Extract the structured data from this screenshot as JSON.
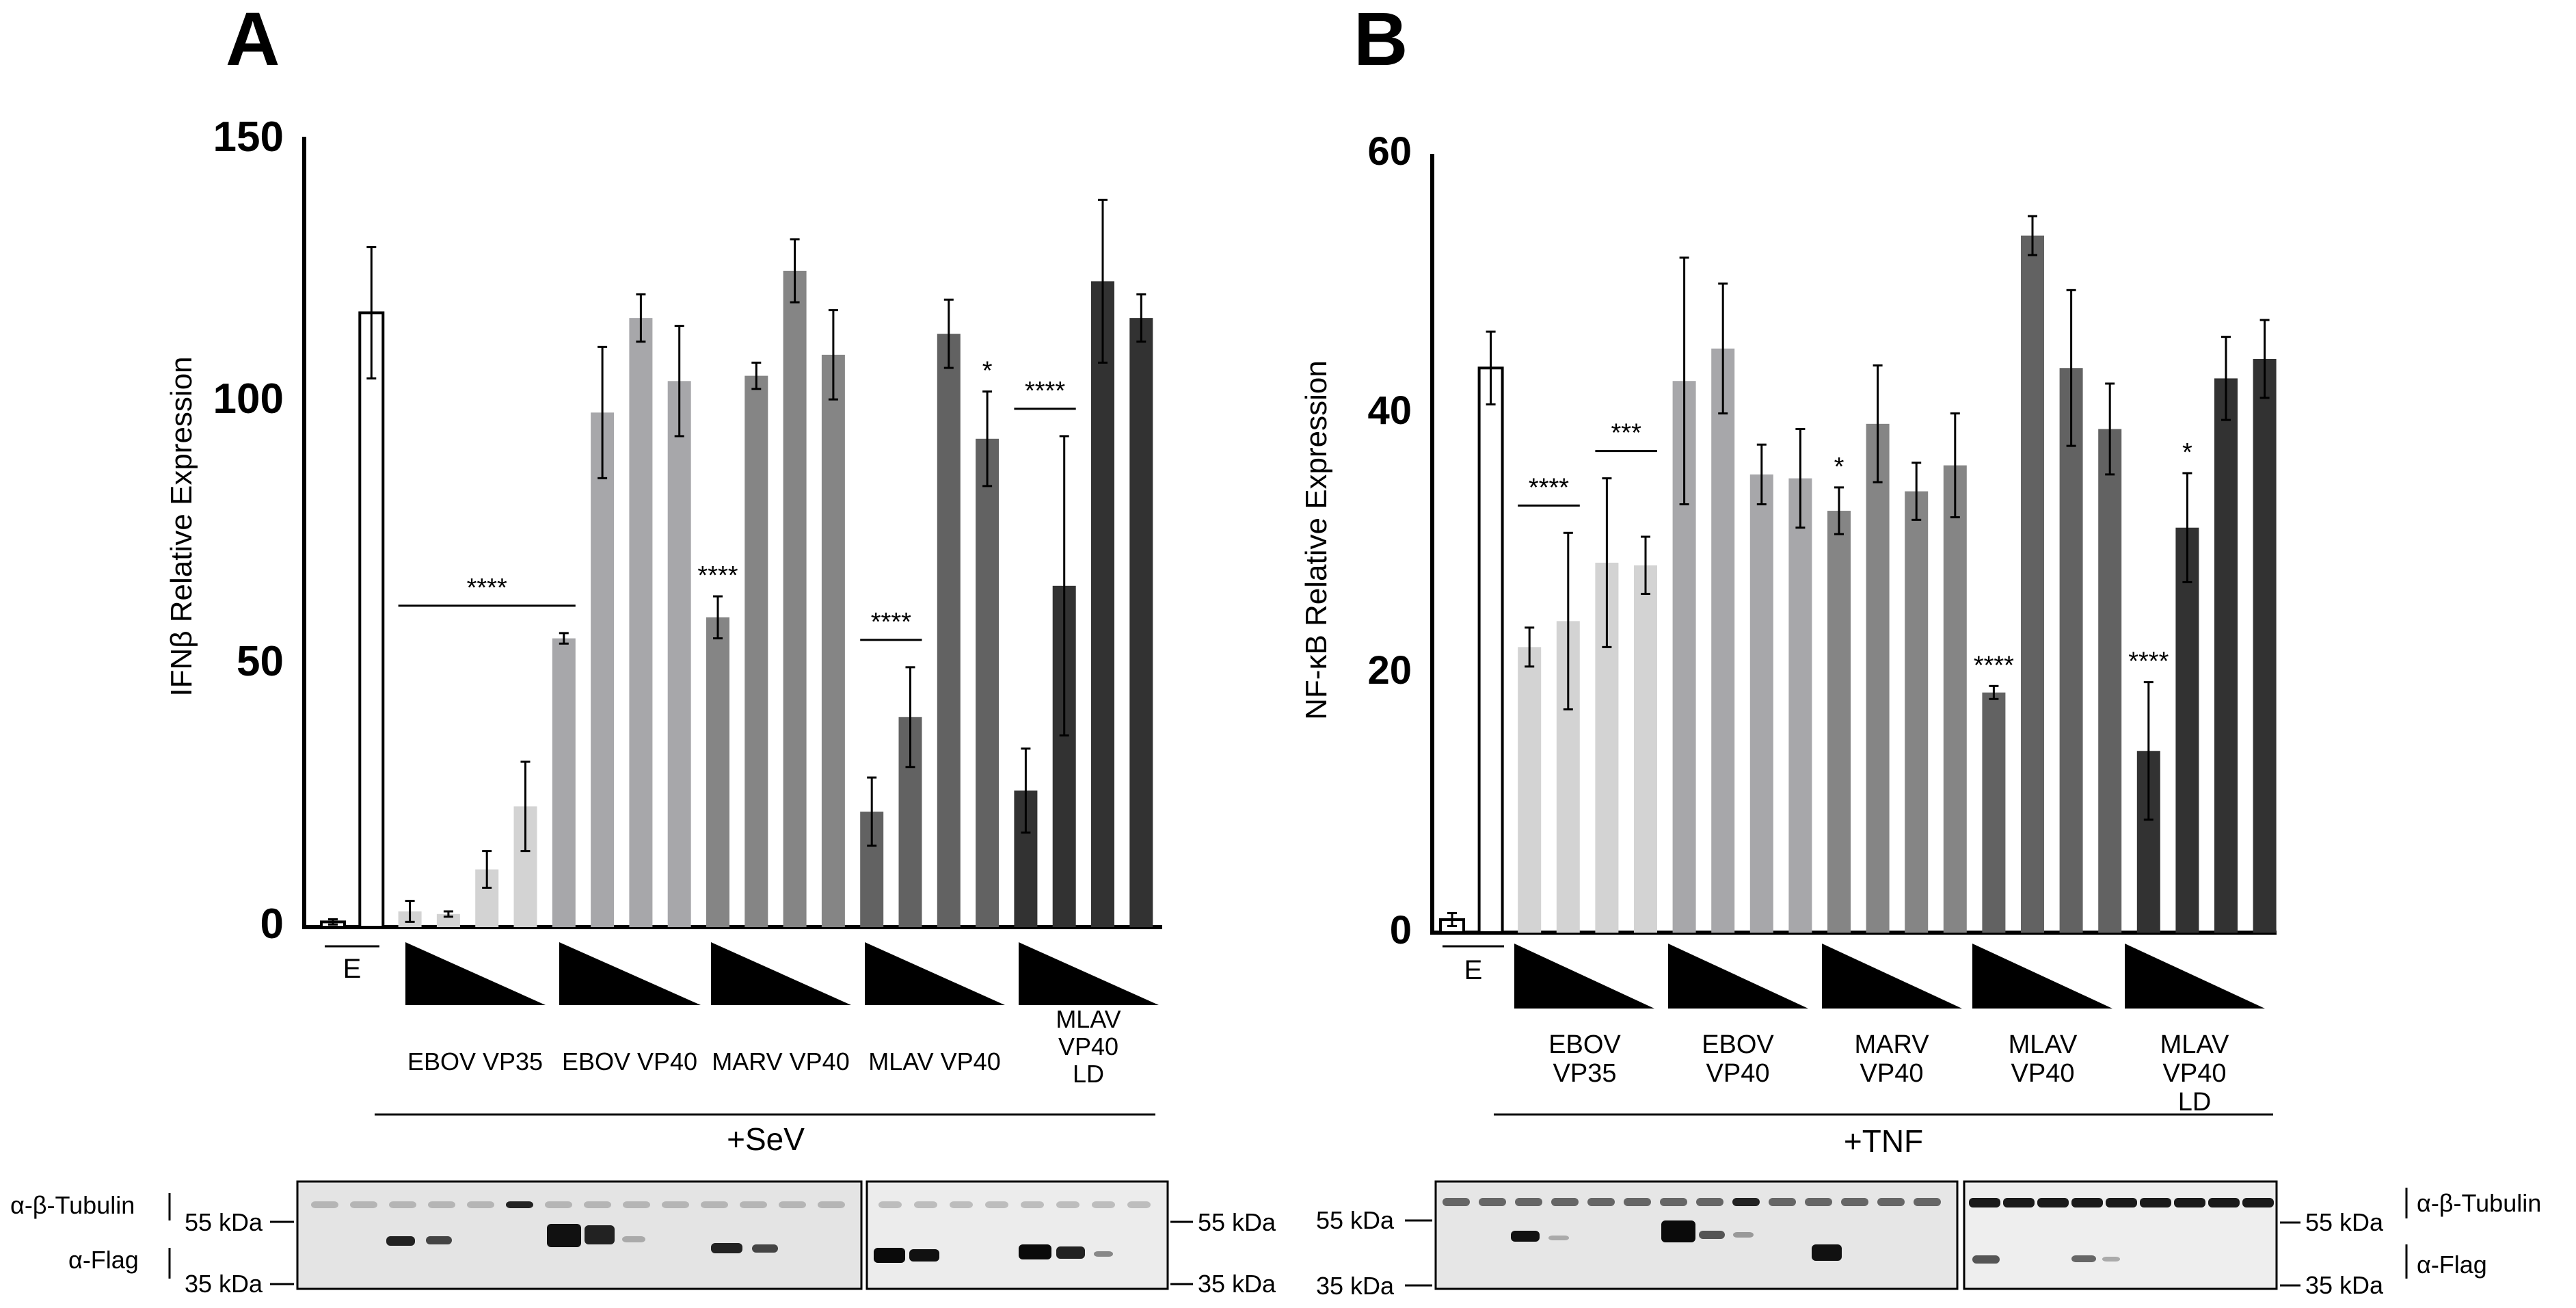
{
  "panels": {
    "A": {
      "letter": "A",
      "ylabel": "IFNβ Relative Expression",
      "y_ticks": [
        "0",
        "50",
        "100",
        "150"
      ],
      "stimulus": "+SeV",
      "empty_label": "E",
      "groups": [
        "EBOV VP35",
        "EBOV VP40",
        "MARV VP40",
        "MLAV VP40",
        "MLAV VP40 LD"
      ]
    },
    "B": {
      "letter": "B",
      "ylabel": "NF-κB Relative Expression",
      "y_ticks": [
        "0",
        "20",
        "40",
        "60"
      ],
      "stimulus": "+TNF",
      "empty_label": "E",
      "groups": [
        "EBOV VP35",
        "EBOV VP40",
        "MARV VP40",
        "MLAV VP40",
        "MLAV VP40 LD"
      ]
    }
  },
  "blots": {
    "tubulin_label": "α-β-Tubulin",
    "flag_label": "α-Flag",
    "kda55": "55 kDa",
    "kda35": "35 kDa"
  },
  "chart_data": [
    {
      "type": "bar",
      "title": "A",
      "ylabel": "IFNβ Relative Expression",
      "ylim": [
        0,
        150
      ],
      "xlabel": "+SeV",
      "categories": [
        "Empty (E)",
        "Empty + SeV",
        "EBOV VP35 d1",
        "EBOV VP35 d2",
        "EBOV VP35 d3",
        "EBOV VP35 d4",
        "EBOV VP40 d1",
        "EBOV VP40 d2",
        "EBOV VP40 d3",
        "EBOV VP40 d4",
        "MARV VP40 d1",
        "MARV VP40 d2",
        "MARV VP40 d3",
        "MARV VP40 d4",
        "MLAV VP40 d1",
        "MLAV VP40 d2",
        "MLAV VP40 d3",
        "MLAV VP40 d4",
        "MLAV VP40 LD d1",
        "MLAV VP40 LD d2",
        "MLAV VP40 LD d3",
        "MLAV VP40 LD d4"
      ],
      "values": [
        1,
        117,
        3,
        2.5,
        11,
        23,
        55,
        98,
        116,
        104,
        59,
        105,
        125,
        109,
        22,
        40,
        113,
        93,
        26,
        65,
        123,
        116
      ],
      "errors": [
        0.5,
        12.5,
        2,
        0.5,
        3.5,
        8.5,
        1,
        12.5,
        4.5,
        10.5,
        4,
        2.5,
        6,
        8.5,
        6.5,
        9.5,
        6.5,
        9,
        8,
        28.5,
        15.5,
        4.5
      ],
      "significance": [
        {
          "label": "****",
          "from": 2,
          "to": 6
        },
        {
          "label": "****",
          "at": 10
        },
        {
          "label": "****",
          "from": 14,
          "to": 15
        },
        {
          "label": "*",
          "at": 17
        },
        {
          "label": "****",
          "from": 18,
          "to": 19
        }
      ]
    },
    {
      "type": "bar",
      "title": "B",
      "ylabel": "NF-κB Relative Expression",
      "ylim": [
        0,
        60
      ],
      "xlabel": "+TNF",
      "categories": [
        "Empty (E)",
        "Empty + TNF",
        "EBOV VP35 d1",
        "EBOV VP35 d2",
        "EBOV VP35 d3",
        "EBOV VP35 d4",
        "EBOV VP40 d1",
        "EBOV VP40 d2",
        "EBOV VP40 d3",
        "EBOV VP40 d4",
        "MARV VP40 d1",
        "MARV VP40 d2",
        "MARV VP40 d3",
        "MARV VP40 d4",
        "MLAV VP40 d1",
        "MLAV VP40 d2",
        "MLAV VP40 d3",
        "MLAV VP40 d4",
        "MLAV VP40 LD d1",
        "MLAV VP40 LD d2",
        "MLAV VP40 LD d3",
        "MLAV VP40 LD d4"
      ],
      "values": [
        1,
        43.5,
        22,
        24,
        28.5,
        28.3,
        42.5,
        45,
        35.3,
        35,
        32.5,
        39.2,
        34,
        36,
        18.5,
        53.7,
        43.5,
        38.8,
        14,
        31.2,
        42.7,
        44.2
      ],
      "errors": [
        0.5,
        2.8,
        1.5,
        6.8,
        6.5,
        2.2,
        9.5,
        5,
        2.3,
        3.8,
        1.8,
        4.5,
        2.2,
        4,
        0.5,
        1.5,
        6,
        3.5,
        5.3,
        4.2,
        3.2,
        3
      ],
      "significance": [
        {
          "label": "****",
          "from": 2,
          "to": 3
        },
        {
          "label": "***",
          "from": 4,
          "to": 5
        },
        {
          "label": "*",
          "at": 10
        },
        {
          "label": "****",
          "at": 14
        },
        {
          "label": "****",
          "at": 18
        },
        {
          "label": "*",
          "at": 19
        }
      ]
    }
  ]
}
